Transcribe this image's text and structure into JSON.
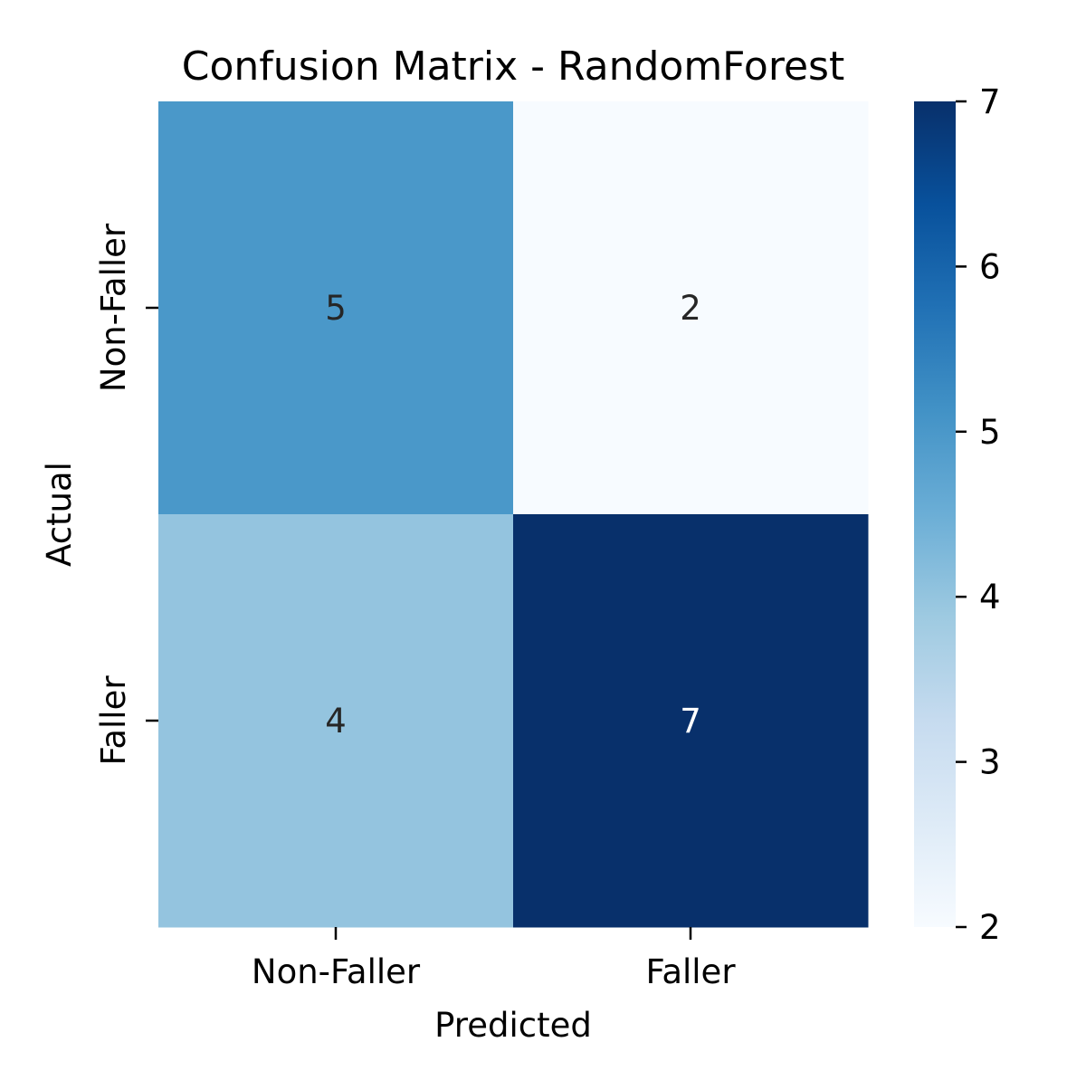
{
  "chart_data": {
    "type": "heatmap",
    "title": "Confusion Matrix - RandomForest",
    "xlabel": "Predicted",
    "ylabel": "Actual",
    "x_categories": [
      "Non-Faller",
      "Faller"
    ],
    "y_categories": [
      "Non-Faller",
      "Faller"
    ],
    "values": [
      [
        5,
        2
      ],
      [
        4,
        7
      ]
    ],
    "colormap": "Blues",
    "colorbar": {
      "range": [
        2,
        7
      ],
      "ticks": [
        2,
        3,
        4,
        5,
        6,
        7
      ],
      "colors": [
        "#f7fbff",
        "#deebf7",
        "#c6dbef",
        "#9ecae1",
        "#6baed6",
        "#4292c6",
        "#2171b5",
        "#08519c",
        "#08306b"
      ]
    },
    "grid": false,
    "legend": "colorbar-right"
  }
}
